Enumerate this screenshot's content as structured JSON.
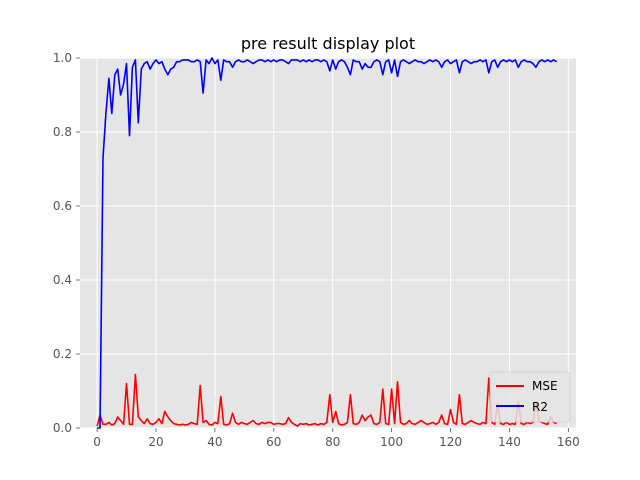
{
  "chart_data": {
    "type": "line",
    "title": "pre result display plot",
    "xlabel": "",
    "ylabel": "",
    "xlim": [
      -5.8,
      162.6
    ],
    "ylim": [
      0,
      1.0
    ],
    "xticks": [
      0,
      20,
      40,
      60,
      80,
      100,
      120,
      140,
      160
    ],
    "yticks": [
      0.0,
      0.2,
      0.4,
      0.6,
      0.8,
      1.0
    ],
    "xtick_labels": [
      "0",
      "20",
      "40",
      "60",
      "80",
      "100",
      "120",
      "140",
      "160"
    ],
    "ytick_labels": [
      "0.0",
      "0.2",
      "0.4",
      "0.6",
      "0.8",
      "1.0"
    ],
    "grid": true,
    "background": "#e5e5e5",
    "legend_position": "lower-right",
    "series": [
      {
        "name": "MSE",
        "color": "#ff0000",
        "x": [
          0,
          1,
          2,
          3,
          4,
          5,
          6,
          7,
          8,
          9,
          10,
          11,
          12,
          13,
          14,
          15,
          16,
          17,
          18,
          19,
          20,
          21,
          22,
          23,
          24,
          25,
          26,
          27,
          28,
          29,
          30,
          31,
          32,
          33,
          34,
          35,
          36,
          37,
          38,
          39,
          40,
          41,
          42,
          43,
          44,
          45,
          46,
          47,
          48,
          49,
          50,
          51,
          52,
          53,
          54,
          55,
          56,
          57,
          58,
          59,
          60,
          61,
          62,
          63,
          64,
          65,
          66,
          67,
          68,
          69,
          70,
          71,
          72,
          73,
          74,
          75,
          76,
          77,
          78,
          79,
          80,
          81,
          82,
          83,
          84,
          85,
          86,
          87,
          88,
          89,
          90,
          91,
          92,
          93,
          94,
          95,
          96,
          97,
          98,
          99,
          100,
          101,
          102,
          103,
          104,
          105,
          106,
          107,
          108,
          109,
          110,
          111,
          112,
          113,
          114,
          115,
          116,
          117,
          118,
          119,
          120,
          121,
          122,
          123,
          124,
          125,
          126,
          127,
          128,
          129,
          130,
          131,
          132,
          133,
          134,
          135,
          136,
          137,
          138,
          139,
          140,
          141,
          142,
          143,
          144,
          145,
          146,
          147,
          148,
          149,
          150,
          151,
          152,
          153,
          154,
          155,
          156
        ],
        "y": [
          0.005,
          0.035,
          0.01,
          0.01,
          0.015,
          0.008,
          0.012,
          0.03,
          0.02,
          0.01,
          0.12,
          0.01,
          0.01,
          0.145,
          0.03,
          0.02,
          0.012,
          0.025,
          0.012,
          0.01,
          0.015,
          0.025,
          0.012,
          0.045,
          0.03,
          0.02,
          0.012,
          0.01,
          0.008,
          0.01,
          0.008,
          0.01,
          0.015,
          0.012,
          0.01,
          0.115,
          0.015,
          0.02,
          0.01,
          0.008,
          0.015,
          0.012,
          0.085,
          0.01,
          0.008,
          0.012,
          0.04,
          0.015,
          0.01,
          0.015,
          0.012,
          0.01,
          0.015,
          0.02,
          0.012,
          0.01,
          0.015,
          0.012,
          0.015,
          0.015,
          0.01,
          0.012,
          0.012,
          0.01,
          0.012,
          0.028,
          0.015,
          0.01,
          0.005,
          0.012,
          0.01,
          0.012,
          0.008,
          0.01,
          0.012,
          0.008,
          0.012,
          0.01,
          0.015,
          0.09,
          0.015,
          0.045,
          0.012,
          0.008,
          0.01,
          0.015,
          0.09,
          0.012,
          0.01,
          0.015,
          0.035,
          0.02,
          0.03,
          0.035,
          0.012,
          0.01,
          0.015,
          0.105,
          0.012,
          0.01,
          0.105,
          0.012,
          0.125,
          0.015,
          0.01,
          0.012,
          0.02,
          0.012,
          0.01,
          0.015,
          0.02,
          0.015,
          0.01,
          0.012,
          0.015,
          0.01,
          0.015,
          0.035,
          0.012,
          0.01,
          0.05,
          0.015,
          0.01,
          0.09,
          0.012,
          0.01,
          0.015,
          0.02,
          0.015,
          0.012,
          0.01,
          0.015,
          0.012,
          0.135,
          0.015,
          0.01,
          0.065,
          0.012,
          0.01,
          0.015,
          0.01,
          0.012,
          0.01,
          0.07,
          0.012,
          0.01,
          0.015,
          0.012,
          0.015,
          0.07,
          0.02,
          0.015,
          0.012,
          0.01,
          0.03,
          0.015,
          0.012
        ]
      },
      {
        "name": "R2",
        "color": "#0000ff",
        "x": [
          0,
          1,
          2,
          3,
          4,
          5,
          6,
          7,
          8,
          9,
          10,
          11,
          12,
          13,
          14,
          15,
          16,
          17,
          18,
          19,
          20,
          21,
          22,
          23,
          24,
          25,
          26,
          27,
          28,
          29,
          30,
          31,
          32,
          33,
          34,
          35,
          36,
          37,
          38,
          39,
          40,
          41,
          42,
          43,
          44,
          45,
          46,
          47,
          48,
          49,
          50,
          51,
          52,
          53,
          54,
          55,
          56,
          57,
          58,
          59,
          60,
          61,
          62,
          63,
          64,
          65,
          66,
          67,
          68,
          69,
          70,
          71,
          72,
          73,
          74,
          75,
          76,
          77,
          78,
          79,
          80,
          81,
          82,
          83,
          84,
          85,
          86,
          87,
          88,
          89,
          90,
          91,
          92,
          93,
          94,
          95,
          96,
          97,
          98,
          99,
          100,
          101,
          102,
          103,
          104,
          105,
          106,
          107,
          108,
          109,
          110,
          111,
          112,
          113,
          114,
          115,
          116,
          117,
          118,
          119,
          120,
          121,
          122,
          123,
          124,
          125,
          126,
          127,
          128,
          129,
          130,
          131,
          132,
          133,
          134,
          135,
          136,
          137,
          138,
          139,
          140,
          141,
          142,
          143,
          144,
          145,
          146,
          147,
          148,
          149,
          150,
          151,
          152,
          153,
          154,
          155,
          156
        ],
        "y": [
          0.0,
          0.0,
          0.73,
          0.85,
          0.945,
          0.85,
          0.955,
          0.97,
          0.9,
          0.93,
          0.985,
          0.79,
          0.975,
          0.995,
          0.825,
          0.97,
          0.985,
          0.99,
          0.97,
          0.985,
          0.995,
          0.985,
          0.99,
          0.97,
          0.955,
          0.97,
          0.975,
          0.99,
          0.99,
          0.995,
          0.995,
          0.995,
          0.99,
          0.99,
          0.995,
          0.99,
          0.905,
          0.995,
          0.985,
          1.0,
          0.985,
          0.995,
          0.94,
          0.995,
          0.99,
          0.99,
          0.975,
          0.99,
          0.995,
          0.99,
          0.99,
          0.995,
          0.99,
          0.985,
          0.99,
          0.995,
          0.995,
          0.99,
          0.995,
          0.99,
          0.995,
          0.99,
          0.995,
          0.995,
          0.99,
          0.985,
          0.995,
          0.995,
          0.995,
          0.99,
          0.995,
          0.99,
          0.995,
          0.99,
          0.995,
          0.995,
          0.99,
          0.995,
          0.99,
          0.965,
          0.995,
          0.97,
          0.99,
          0.995,
          0.99,
          0.975,
          0.955,
          0.995,
          0.99,
          0.99,
          0.97,
          0.985,
          0.975,
          0.975,
          0.99,
          0.995,
          0.99,
          0.955,
          0.99,
          0.995,
          0.96,
          0.995,
          0.95,
          0.99,
          0.995,
          0.99,
          0.985,
          0.99,
          0.995,
          0.99,
          0.99,
          0.985,
          0.99,
          0.995,
          0.99,
          0.995,
          0.99,
          0.975,
          0.99,
          0.995,
          0.985,
          0.99,
          0.995,
          0.96,
          0.99,
          0.995,
          0.99,
          0.985,
          0.99,
          0.99,
          0.995,
          0.99,
          0.995,
          0.96,
          0.99,
          0.995,
          0.975,
          0.99,
          0.995,
          0.99,
          0.995,
          0.99,
          0.995,
          0.975,
          0.99,
          0.995,
          0.99,
          0.99,
          0.985,
          0.975,
          0.99,
          0.995,
          0.99,
          0.995,
          0.99,
          0.995,
          0.99
        ]
      }
    ]
  }
}
